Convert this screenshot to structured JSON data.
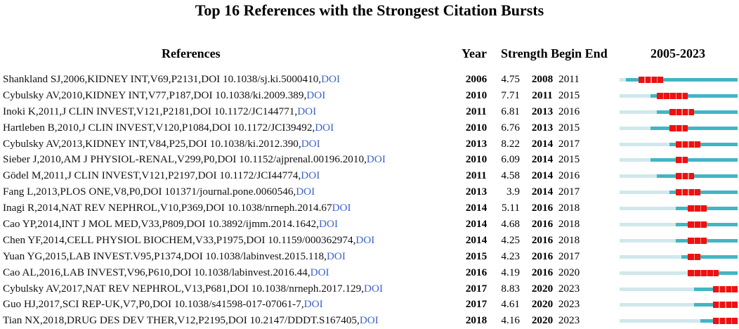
{
  "title": "Top 16 References with the Strongest Citation Bursts",
  "headers": {
    "references": "References",
    "year": "Year",
    "strength_begin_end": "Strength Begin End",
    "range": "2005-2023"
  },
  "colors": {
    "pre_citation": "#cfe8ec",
    "cited": "#41b6c4",
    "burst": "#ee1111",
    "doi_link": "#3b63c8"
  },
  "chart_data": {
    "type": "table",
    "title": "Top 16 References with the Strongest Citation Bursts",
    "range_start": 2005,
    "range_end": 2023,
    "rows": [
      {
        "ref": "Shankland SJ,2006,KIDNEY INT,V69,P2131,DOI 10.1038/sj.ki.5000410,",
        "doi": "DOI",
        "year": "2006",
        "strength": "4.75",
        "begin": "2008",
        "end": "2011"
      },
      {
        "ref": "Cybulsky AV,2010,KIDNEY INT,V77,P187,DOI 10.1038/ki.2009.389,",
        "doi": "DOI",
        "year": "2010",
        "strength": "7.71",
        "begin": "2011",
        "end": "2015"
      },
      {
        "ref": "Inoki K,2011,J CLIN INVEST,V121,P2181,DOI 10.1172/JC144771,",
        "doi": "DOI",
        "year": "2011",
        "strength": "6.81",
        "begin": "2013",
        "end": "2016"
      },
      {
        "ref": "Hartleben B,2010,J CLIN INVEST,V120,P1084,DOI 10.1172/JCI39492,",
        "doi": "DOI",
        "year": "2010",
        "strength": "6.76",
        "begin": "2013",
        "end": "2015"
      },
      {
        "ref": "Cybulsky AV,2013,KIDNEY INT,V84,P25,DOI 10.1038/ki.2012.390,",
        "doi": "DOI",
        "year": "2013",
        "strength": "8.22",
        "begin": "2014",
        "end": "2017"
      },
      {
        "ref": "Sieber J,2010,AM J PHYSIOL-RENAL,V299,P0,DOI 10.1152/ajprenal.00196.2010,",
        "doi": "DOI",
        "year": "2010",
        "strength": "6.09",
        "begin": "2014",
        "end": "2015"
      },
      {
        "ref": "Gödel M,2011,J CLIN INVEST,V121,P2197,DOI 10.1172/JCI44774,",
        "doi": "DOI",
        "year": "2011",
        "strength": "4.58",
        "begin": "2014",
        "end": "2016"
      },
      {
        "ref": "Fang L,2013,PLOS ONE,V8,P0,DOI 101371/journal.pone.0060546,",
        "doi": "DOI",
        "year": "2013",
        "strength": "3.9",
        "begin": "2014",
        "end": "2017"
      },
      {
        "ref": "Inagi R,2014,NAT REV NEPHROL,V10,P369,DOI 10.1038/nrneph.2014.67",
        "doi": "DOI",
        "year": "2014",
        "strength": "5.11",
        "begin": "2016",
        "end": "2018"
      },
      {
        "ref": "Cao YP,2014,INT J MOL MED,V33,P809,DOI 10.3892/ijmm.2014.1642,",
        "doi": "DOI",
        "year": "2014",
        "strength": "4.68",
        "begin": "2016",
        "end": "2018"
      },
      {
        "ref": "Chen YF,2014,CELL PHYSIOL BIOCHEM,V33,P1975,DOI 10.1159/000362974,",
        "doi": "DOI",
        "year": "2014",
        "strength": "4.25",
        "begin": "2016",
        "end": "2018"
      },
      {
        "ref": "Yuan YG,2015,LAB INVEST.V95,P1374,DOI 10.1038/labinvest.2015.118,",
        "doi": "DOI",
        "year": "2015",
        "strength": "4.23",
        "begin": "2016",
        "end": "2017"
      },
      {
        "ref": "Cao AL,2016,LAB INVEST,V96,P610,DOI 10.1038/labinvest.2016.44,",
        "doi": "DOI",
        "year": "2016",
        "strength": "4.19",
        "begin": "2016",
        "end": "2020"
      },
      {
        "ref": "Cybulsky AV,2017,NAT REV NEPHROL,V13,P681,DOI 10.1038/nrneph.2017.129,",
        "doi": "DOI",
        "year": "2017",
        "strength": "8.83",
        "begin": "2020",
        "end": "2023"
      },
      {
        "ref": "Guo HJ,2017,SCI REP-UK,V7,P0,DOI 10.1038/s41598-017-07061-7,",
        "doi": "DOI",
        "year": "2017",
        "strength": "4.61",
        "begin": "2020",
        "end": "2023"
      },
      {
        "ref": "Tian NX,2018,DRUG DES DEV THER,V12,P2195,DOI 10.2147/DDDT.S167405,",
        "doi": "DOI",
        "year": "2018",
        "strength": "4.16",
        "begin": "2020",
        "end": "2023"
      }
    ]
  }
}
